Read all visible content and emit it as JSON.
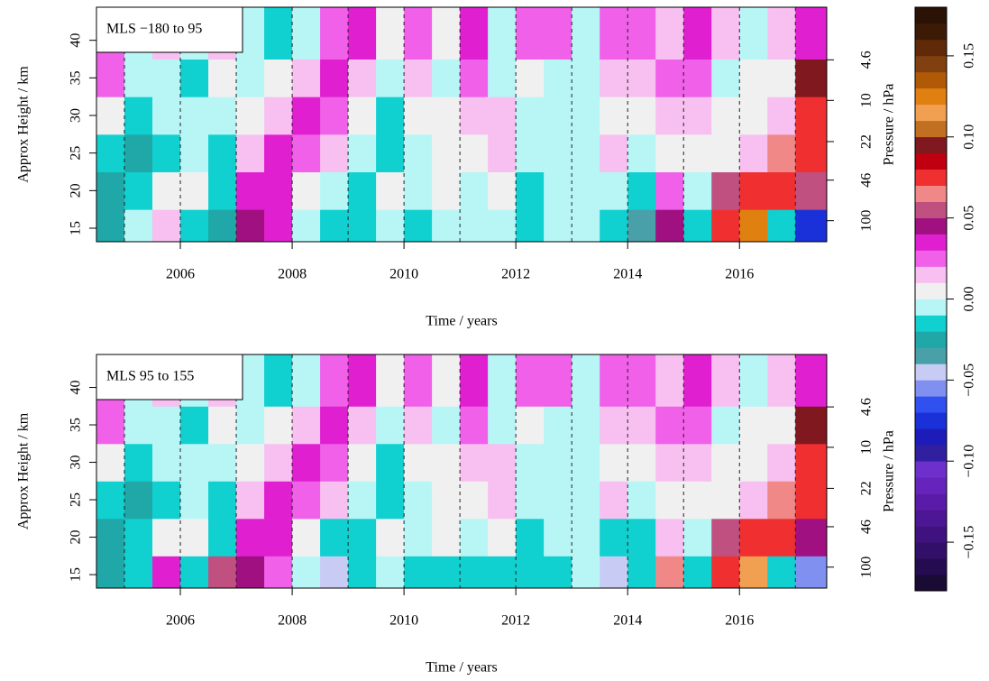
{
  "chart_data": [
    {
      "type": "contour",
      "label": "MLS −180 to 95",
      "xlabel": "Time / years",
      "ylabel": "Approx Height / km",
      "y2label": "Pressure / hPa",
      "x": [
        2004.75,
        2005.25,
        2005.75,
        2006.25,
        2006.75,
        2007.25,
        2007.75,
        2008.25,
        2008.75,
        2009.25,
        2009.75,
        2010.25,
        2010.75,
        2011.25,
        2011.75,
        2012.25,
        2012.75,
        2013.25,
        2013.75,
        2014.25,
        2014.75,
        2015.25,
        2015.75,
        2016.25,
        2016.75,
        2017.25
      ],
      "y": [
        15,
        20,
        25,
        30,
        35,
        40
      ],
      "z": [
        [
          -0.03,
          -0.01,
          0.015,
          -0.015,
          -0.03,
          0.045,
          0.03,
          -0.01,
          -0.015,
          -0.02,
          -0.01,
          -0.015,
          -0.01,
          -0.01,
          -0.01,
          -0.015,
          -0.01,
          -0.01,
          -0.02,
          -0.035,
          0.04,
          -0.02,
          0.07,
          0.12,
          -0.02,
          -0.08
        ],
        [
          -0.03,
          -0.02,
          0.005,
          0.005,
          -0.02,
          0.03,
          0.035,
          0.005,
          -0.01,
          -0.02,
          0.005,
          -0.01,
          0.005,
          -0.01,
          0.005,
          -0.015,
          -0.01,
          -0.01,
          -0.01,
          -0.02,
          0.02,
          -0.01,
          0.05,
          0.07,
          0.07,
          0.05
        ],
        [
          -0.02,
          -0.03,
          -0.015,
          -0.01,
          -0.02,
          0.015,
          0.03,
          0.025,
          0.01,
          -0.01,
          -0.02,
          -0.01,
          0.005,
          0.005,
          0.015,
          -0.01,
          -0.01,
          -0.01,
          0.01,
          -0.01,
          0.005,
          0.005,
          0.005,
          0.01,
          0.06,
          0.075
        ],
        [
          0.005,
          -0.02,
          -0.01,
          -0.01,
          -0.01,
          0.005,
          0.015,
          0.03,
          0.025,
          0.005,
          -0.02,
          0.005,
          0.005,
          0.01,
          0.01,
          -0.01,
          -0.01,
          -0.01,
          0.005,
          0.005,
          0.01,
          0.01,
          0.005,
          0.005,
          0.01,
          0.07
        ],
        [
          0.02,
          -0.01,
          -0.01,
          -0.02,
          0.005,
          -0.01,
          0.005,
          0.015,
          0.03,
          0.015,
          -0.01,
          0.015,
          -0.01,
          0.02,
          -0.01,
          0.005,
          -0.01,
          -0.01,
          0.015,
          0.015,
          0.02,
          0.025,
          -0.01,
          0.005,
          0.005,
          0.09
        ],
        [
          0.02,
          -0.01,
          0.01,
          -0.01,
          0.015,
          -0.01,
          -0.02,
          -0.01,
          0.025,
          0.03,
          0.005,
          0.025,
          0.005,
          0.03,
          -0.01,
          0.02,
          0.02,
          -0.01,
          0.02,
          0.025,
          0.015,
          0.035,
          0.01,
          -0.01,
          0.01,
          0.03
        ]
      ],
      "xlim": [
        2004.5,
        2017.56
      ],
      "ylim": [
        13.2,
        44.4
      ],
      "xticks": [
        2006,
        2008,
        2010,
        2012,
        2014,
        2016
      ],
      "yticks": [
        15,
        20,
        25,
        30,
        35,
        40
      ],
      "y2lim": [
        149.6,
        1.68
      ],
      "y2log": true,
      "y2ticks": [
        100,
        46,
        22,
        10,
        4.6
      ],
      "year_lines": [
        2005,
        2006,
        2007,
        2008,
        2009,
        2010,
        2011,
        2012,
        2013,
        2014,
        2015,
        2016,
        2017
      ]
    },
    {
      "type": "contour",
      "label": "MLS 95 to 155",
      "xlabel": "Time / years",
      "ylabel": "Approx Height / km",
      "y2label": "Pressure / hPa",
      "x": [
        2004.75,
        2005.25,
        2005.75,
        2006.25,
        2006.75,
        2007.25,
        2007.75,
        2008.25,
        2008.75,
        2009.25,
        2009.75,
        2010.25,
        2010.75,
        2011.25,
        2011.75,
        2012.25,
        2012.75,
        2013.25,
        2013.75,
        2014.25,
        2014.75,
        2015.25,
        2015.75,
        2016.25,
        2016.75,
        2017.25
      ],
      "y": [
        15,
        20,
        25,
        30,
        35,
        40
      ],
      "z": [
        [
          -0.025,
          -0.015,
          0.03,
          -0.02,
          0.05,
          0.045,
          0.02,
          -0.01,
          -0.05,
          -0.02,
          -0.01,
          -0.02,
          -0.02,
          -0.015,
          -0.02,
          -0.02,
          -0.015,
          -0.01,
          -0.05,
          -0.015,
          0.06,
          -0.02,
          0.07,
          0.11,
          -0.02,
          -0.06
        ],
        [
          -0.03,
          -0.02,
          0.005,
          0.005,
          -0.02,
          0.03,
          0.035,
          0.005,
          -0.02,
          -0.02,
          0.005,
          -0.01,
          0.005,
          -0.01,
          0.005,
          -0.015,
          -0.01,
          -0.01,
          -0.02,
          -0.02,
          0.015,
          -0.01,
          0.05,
          0.075,
          0.07,
          0.04
        ],
        [
          -0.02,
          -0.03,
          -0.015,
          -0.01,
          -0.02,
          0.015,
          0.03,
          0.025,
          0.01,
          -0.01,
          -0.02,
          -0.01,
          0.005,
          0.005,
          0.015,
          -0.01,
          -0.01,
          -0.01,
          0.01,
          -0.01,
          0.005,
          0.005,
          0.005,
          0.01,
          0.06,
          0.075
        ],
        [
          0.005,
          -0.02,
          -0.01,
          -0.01,
          -0.01,
          0.005,
          0.015,
          0.03,
          0.025,
          0.005,
          -0.02,
          0.005,
          0.005,
          0.01,
          0.01,
          -0.01,
          -0.01,
          -0.01,
          0.005,
          0.005,
          0.01,
          0.01,
          0.005,
          0.005,
          0.01,
          0.07
        ],
        [
          0.02,
          -0.01,
          -0.01,
          -0.02,
          0.005,
          -0.01,
          0.005,
          0.015,
          0.03,
          0.015,
          -0.01,
          0.015,
          -0.01,
          0.02,
          -0.01,
          0.005,
          -0.01,
          -0.01,
          0.015,
          0.015,
          0.02,
          0.025,
          -0.01,
          0.005,
          0.005,
          0.09
        ],
        [
          0.02,
          -0.01,
          0.01,
          -0.01,
          0.015,
          -0.01,
          -0.02,
          -0.01,
          0.025,
          0.03,
          0.005,
          0.025,
          0.005,
          0.03,
          -0.01,
          0.02,
          0.02,
          -0.01,
          0.02,
          0.025,
          0.015,
          0.035,
          0.01,
          -0.01,
          0.01,
          0.03
        ]
      ],
      "xlim": [
        2004.5,
        2017.56
      ],
      "ylim": [
        13.2,
        44.4
      ],
      "xticks": [
        2006,
        2008,
        2010,
        2012,
        2014,
        2016
      ],
      "yticks": [
        15,
        20,
        25,
        30,
        35,
        40
      ],
      "y2lim": [
        149.6,
        1.68
      ],
      "y2log": true,
      "y2ticks": [
        100,
        46,
        22,
        10,
        4.6
      ],
      "year_lines": [
        2005,
        2006,
        2007,
        2008,
        2009,
        2010,
        2011,
        2012,
        2013,
        2014,
        2015,
        2016,
        2017
      ]
    },
    {
      "type": "colorbar",
      "levels": [
        -0.18,
        -0.17,
        -0.16,
        -0.15,
        -0.14,
        -0.13,
        -0.12,
        -0.11,
        -0.1,
        -0.09,
        -0.08,
        -0.07,
        -0.06,
        -0.05,
        -0.04,
        -0.03,
        -0.02,
        -0.01,
        0,
        0.01,
        0.02,
        0.03,
        0.04,
        0.05,
        0.06,
        0.07,
        0.08,
        0.09,
        0.1,
        0.11,
        0.12,
        0.13,
        0.14,
        0.15,
        0.16,
        0.17,
        0.18
      ],
      "colors": [
        "#1a0b35",
        "#250c50",
        "#320f68",
        "#3f1280",
        "#4c1694",
        "#5a1ca8",
        "#6624bc",
        "#6e30cc",
        "#3020a0",
        "#1e1cb8",
        "#1a30d8",
        "#3050f0",
        "#8090f0",
        "#c8ccf4",
        "#4aa0a8",
        "#20a8a8",
        "#10d0d0",
        "#b8f6f6",
        "#f0f0f0",
        "#f8c0f0",
        "#f060e8",
        "#e020d0",
        "#a01080",
        "#c05080",
        "#f08888",
        "#f03030",
        "#c00010",
        "#801820",
        "#c07020",
        "#f0a050",
        "#e08010",
        "#b05a08",
        "#804010",
        "#602a08",
        "#3c1a06",
        "#2a1204"
      ],
      "zlim": [
        -0.18,
        0.18
      ],
      "zticks": [
        {
          "value": -0.15,
          "label": "−0.15"
        },
        {
          "value": -0.1,
          "label": "−0.10"
        },
        {
          "value": -0.05,
          "label": "−0.05"
        },
        {
          "value": 0,
          "label": "0.00"
        },
        0.05,
        {
          "value": 0.1,
          "label": "0.10"
        },
        0.15
      ]
    }
  ]
}
